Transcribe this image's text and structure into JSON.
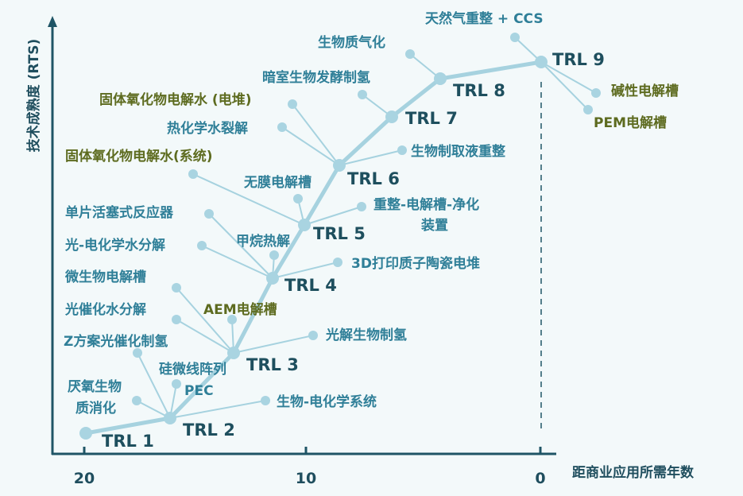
{
  "colors": {
    "axis": "#1f5566",
    "line": "#a6d2df",
    "node": "#a9d4e1",
    "tech_text": "#2f7f98",
    "tech_text_highlight": "#5d6b1f",
    "trl_text": "#1e4f5e",
    "background": "#f3f9fa"
  },
  "axes": {
    "y_label": "技术成熟度 (RTS)",
    "x_label": "距商业应用所需年数",
    "x_ticks": [
      "20",
      "10",
      "0"
    ]
  },
  "trl_levels": [
    "TRL 1",
    "TRL 2",
    "TRL 3",
    "TRL 4",
    "TRL 5",
    "TRL 6",
    "TRL 7",
    "TRL 8",
    "TRL 9"
  ],
  "technologies": [
    {
      "label": [
        "天然气重整 + CCS"
      ],
      "trl": 9,
      "highlight": false
    },
    {
      "label": [
        "生物质气化"
      ],
      "trl": 8,
      "highlight": false
    },
    {
      "label": [
        "暗室生物发酵制氢"
      ],
      "trl": 7,
      "highlight": false
    },
    {
      "label": [
        "碱性电解槽"
      ],
      "trl": 9,
      "highlight": true
    },
    {
      "label": [
        "PEM电解槽"
      ],
      "trl": 9,
      "highlight": true
    },
    {
      "label": [
        "固体氧化物电解水 (电堆)"
      ],
      "trl": 6,
      "highlight": true
    },
    {
      "label": [
        "热化学水裂解"
      ],
      "trl": 6,
      "highlight": false
    },
    {
      "label": [
        "生物制取液重整"
      ],
      "trl": 6,
      "highlight": false
    },
    {
      "label": [
        "固体氧化物电解水(系统)"
      ],
      "trl": 5,
      "highlight": true
    },
    {
      "label": [
        "无膜电解槽"
      ],
      "trl": 5,
      "highlight": false
    },
    {
      "label": [
        "重整-电解槽-净化",
        "装置"
      ],
      "trl": 5,
      "highlight": false
    },
    {
      "label": [
        "单片活塞式反应器"
      ],
      "trl": 4,
      "highlight": false
    },
    {
      "label": [
        "光-电化学水分解"
      ],
      "trl": 4,
      "highlight": false
    },
    {
      "label": [
        "甲烷热解"
      ],
      "trl": 4,
      "highlight": false
    },
    {
      "label": [
        "3D打印质子陶瓷电堆"
      ],
      "trl": 4,
      "highlight": false
    },
    {
      "label": [
        "微生物电解槽"
      ],
      "trl": 3,
      "highlight": false
    },
    {
      "label": [
        "光催化水分解"
      ],
      "trl": 3,
      "highlight": false
    },
    {
      "label": [
        "AEM电解槽"
      ],
      "trl": 3,
      "highlight": true
    },
    {
      "label": [
        "光解生物制氢"
      ],
      "trl": 3,
      "highlight": false
    },
    {
      "label": [
        "Z方案光催化制氢"
      ],
      "trl": 2,
      "highlight": false
    },
    {
      "label": [
        "硅微线阵列",
        "PEC"
      ],
      "trl": 2,
      "highlight": false
    },
    {
      "label": [
        "厌氧生物",
        "质消化"
      ],
      "trl": 2,
      "highlight": false
    },
    {
      "label": [
        "生物-电化学系统"
      ],
      "trl": 2,
      "highlight": false
    }
  ]
}
